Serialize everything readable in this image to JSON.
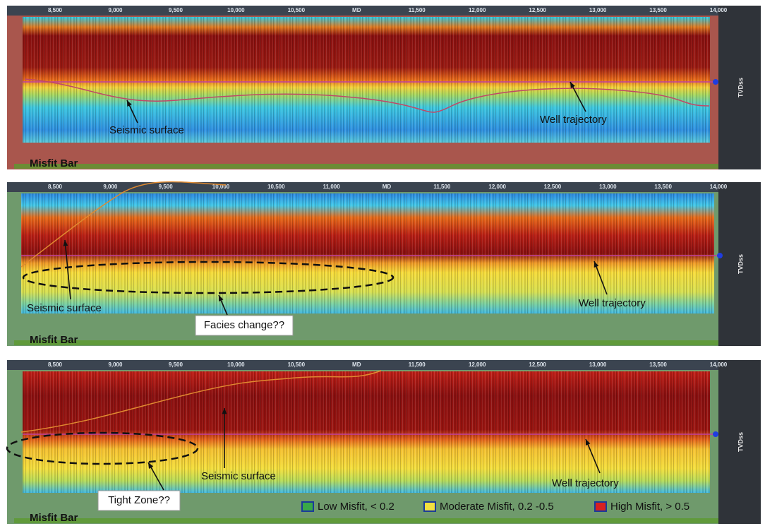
{
  "panels": [
    {
      "top_ticks": [
        "8,500",
        "9,000",
        "9,500",
        "10,000",
        "10,500",
        "MD",
        "11,500",
        "12,000",
        "12,500",
        "13,000",
        "13,500",
        "14,000"
      ],
      "axis_label": "TVDss",
      "misfit_label": "Misfit Bar",
      "annotations": [
        "Seismic surface",
        "Well trajectory"
      ]
    },
    {
      "top_ticks": [
        "8,500",
        "9,000",
        "9,500",
        "10,000",
        "10,500",
        "11,000",
        "MD",
        "11,500",
        "12,000",
        "12,500",
        "13,000",
        "13,500",
        "14,000"
      ],
      "axis_label": "TVDss",
      "misfit_label": "Misfit Bar",
      "annotations": [
        "Seismic surface",
        "Well trajectory",
        "Facies change??"
      ]
    },
    {
      "top_ticks": [
        "8,500",
        "9,000",
        "9,500",
        "10,000",
        "10,500",
        "MD",
        "11,500",
        "12,000",
        "12,500",
        "13,000",
        "13,500",
        "14,000"
      ],
      "axis_label": "TVDss",
      "misfit_label": "Misfit Bar",
      "annotations": [
        "Seismic surface",
        "Well trajectory",
        "Tight Zone??"
      ]
    }
  ],
  "legend": [
    "Low Misfit, < 0.2",
    "Moderate Misfit, 0.2 -0.5",
    "High Misfit, > 0.5"
  ]
}
